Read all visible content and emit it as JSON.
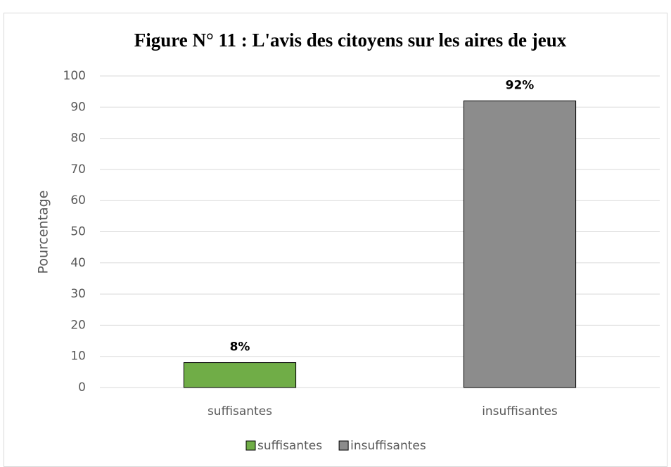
{
  "chart_data": {
    "type": "bar",
    "title": "Figure N° 11 : L'avis des citoyens sur les  aires de jeux",
    "y_label": "Pourcentage",
    "categories": [
      "suffisantes",
      "insuffisantes"
    ],
    "values": [
      8,
      92
    ],
    "value_labels": [
      "8%",
      "92%"
    ],
    "colors": [
      "#70ad47",
      "#8c8c8c"
    ],
    "ylim": [
      0,
      100
    ],
    "yticks": [
      0,
      10,
      20,
      30,
      40,
      50,
      60,
      70,
      80,
      90,
      100
    ],
    "grid": true,
    "legend": "bottom"
  }
}
